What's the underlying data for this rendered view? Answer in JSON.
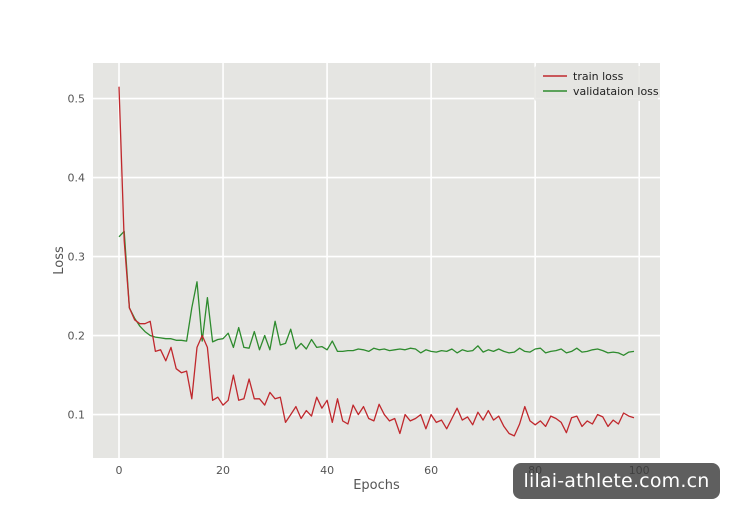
{
  "chart_data": {
    "type": "line",
    "title": "",
    "xlabel": "Epochs",
    "ylabel": "Loss",
    "xlim": [
      -5,
      104
    ],
    "ylim": [
      0.045,
      0.545
    ],
    "x_ticks": [
      0,
      20,
      40,
      60,
      80,
      100
    ],
    "y_ticks": [
      0.1,
      0.2,
      0.3,
      0.4,
      0.5
    ],
    "grid": true,
    "legend_position": "top-right",
    "x": [
      0,
      1,
      2,
      3,
      4,
      5,
      6,
      7,
      8,
      9,
      10,
      11,
      12,
      13,
      14,
      15,
      16,
      17,
      18,
      19,
      20,
      21,
      22,
      23,
      24,
      25,
      26,
      27,
      28,
      29,
      30,
      31,
      32,
      33,
      34,
      35,
      36,
      37,
      38,
      39,
      40,
      41,
      42,
      43,
      44,
      45,
      46,
      47,
      48,
      49,
      50,
      51,
      52,
      53,
      54,
      55,
      56,
      57,
      58,
      59,
      60,
      61,
      62,
      63,
      64,
      65,
      66,
      67,
      68,
      69,
      70,
      71,
      72,
      73,
      74,
      75,
      76,
      77,
      78,
      79,
      80,
      81,
      82,
      83,
      84,
      85,
      86,
      87,
      88,
      89,
      90,
      91,
      92,
      93,
      94,
      95,
      96,
      97,
      98,
      99
    ],
    "series": [
      {
        "name": "train loss",
        "color": "#c0282d",
        "values": [
          0.515,
          0.32,
          0.235,
          0.22,
          0.215,
          0.215,
          0.218,
          0.18,
          0.182,
          0.168,
          0.185,
          0.158,
          0.153,
          0.155,
          0.12,
          0.185,
          0.2,
          0.185,
          0.118,
          0.122,
          0.112,
          0.118,
          0.15,
          0.118,
          0.12,
          0.145,
          0.12,
          0.12,
          0.112,
          0.128,
          0.12,
          0.122,
          0.09,
          0.1,
          0.11,
          0.095,
          0.105,
          0.098,
          0.122,
          0.108,
          0.118,
          0.09,
          0.12,
          0.092,
          0.088,
          0.112,
          0.1,
          0.11,
          0.095,
          0.092,
          0.113,
          0.1,
          0.092,
          0.095,
          0.076,
          0.1,
          0.092,
          0.095,
          0.1,
          0.082,
          0.1,
          0.09,
          0.093,
          0.082,
          0.095,
          0.108,
          0.093,
          0.097,
          0.087,
          0.103,
          0.093,
          0.105,
          0.093,
          0.098,
          0.085,
          0.076,
          0.073,
          0.088,
          0.11,
          0.092,
          0.087,
          0.092,
          0.085,
          0.098,
          0.095,
          0.09,
          0.077,
          0.096,
          0.098,
          0.085,
          0.092,
          0.088,
          0.1,
          0.097,
          0.085,
          0.093,
          0.088,
          0.102,
          0.098,
          0.096
        ]
      },
      {
        "name": "validataion loss",
        "color": "#2e8b2e",
        "values": [
          0.325,
          0.332,
          0.235,
          0.222,
          0.212,
          0.205,
          0.2,
          0.198,
          0.197,
          0.196,
          0.196,
          0.194,
          0.194,
          0.193,
          0.235,
          0.268,
          0.193,
          0.248,
          0.192,
          0.195,
          0.196,
          0.203,
          0.185,
          0.21,
          0.185,
          0.184,
          0.205,
          0.182,
          0.2,
          0.182,
          0.218,
          0.188,
          0.19,
          0.208,
          0.183,
          0.19,
          0.183,
          0.195,
          0.185,
          0.186,
          0.182,
          0.193,
          0.18,
          0.18,
          0.181,
          0.181,
          0.183,
          0.182,
          0.18,
          0.184,
          0.182,
          0.183,
          0.181,
          0.182,
          0.183,
          0.182,
          0.184,
          0.183,
          0.178,
          0.182,
          0.18,
          0.179,
          0.181,
          0.18,
          0.183,
          0.178,
          0.182,
          0.18,
          0.181,
          0.187,
          0.179,
          0.182,
          0.18,
          0.183,
          0.18,
          0.178,
          0.179,
          0.184,
          0.18,
          0.179,
          0.183,
          0.184,
          0.178,
          0.18,
          0.181,
          0.183,
          0.178,
          0.18,
          0.184,
          0.179,
          0.18,
          0.182,
          0.183,
          0.181,
          0.178,
          0.179,
          0.178,
          0.175,
          0.179,
          0.18
        ]
      }
    ]
  },
  "watermark": {
    "text": "lilai-athlete.com.cn"
  }
}
